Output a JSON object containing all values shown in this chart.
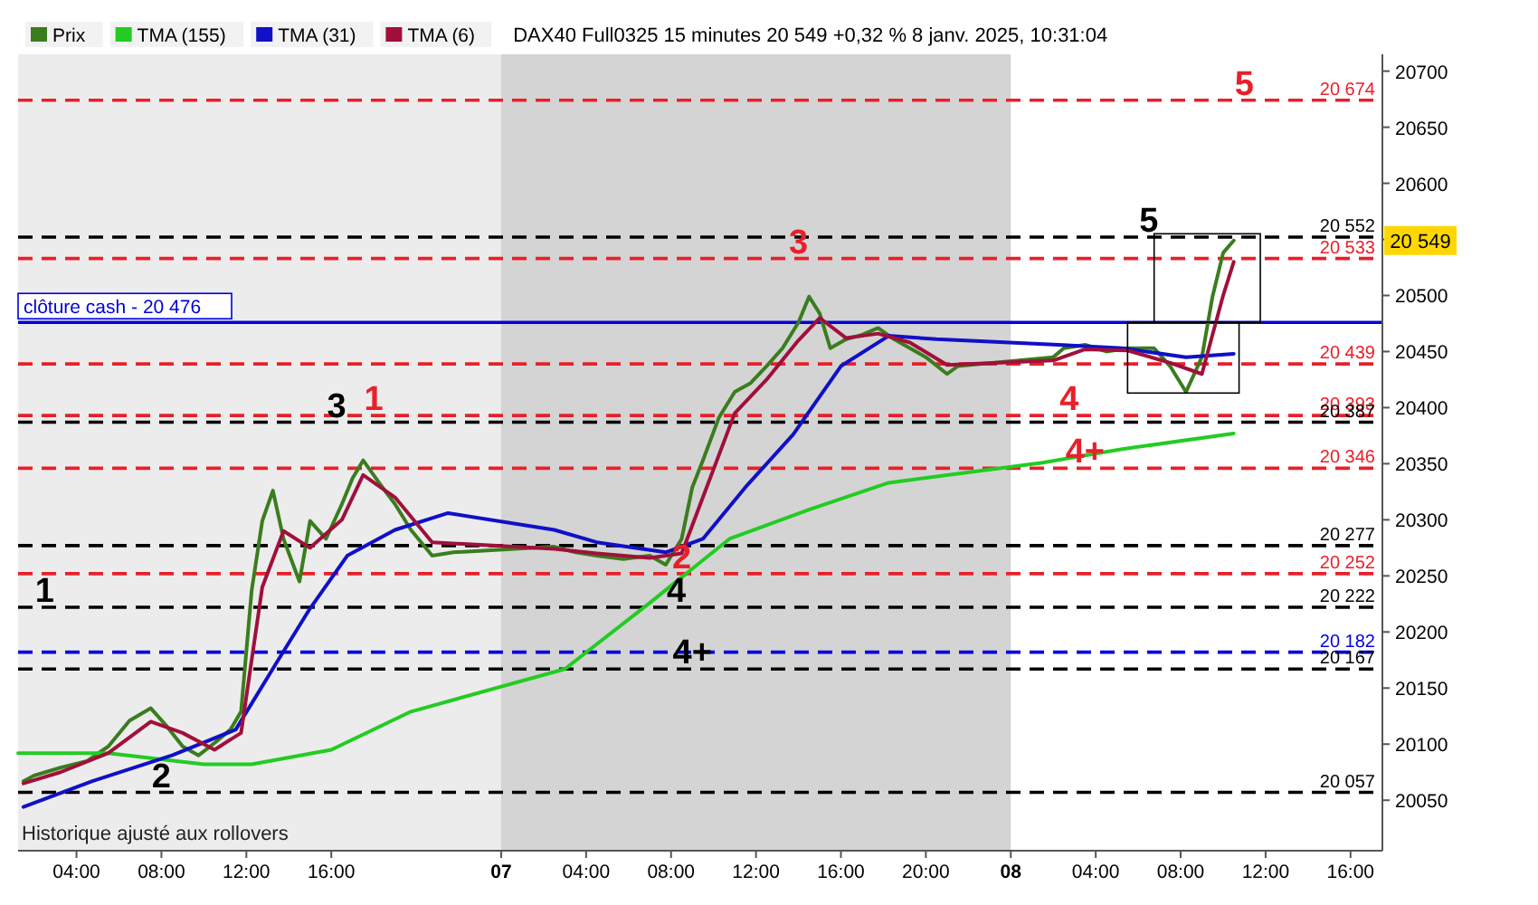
{
  "chart_data": {
    "type": "line",
    "title": "DAX40 Full0325 15 minutes 20 549 +0,32 % 8 janv. 2025, 10:31:04",
    "xlim": [
      "2025-01-06T01:15",
      "2025-01-08T17:30"
    ],
    "ylim": [
      20005,
      20715
    ],
    "xticks": [
      {
        "value": "2025-01-06T04:00",
        "label": "04:00"
      },
      {
        "value": "2025-01-06T08:00",
        "label": "08:00"
      },
      {
        "value": "2025-01-06T12:00",
        "label": "12:00"
      },
      {
        "value": "2025-01-06T16:00",
        "label": "16:00"
      },
      {
        "value": "2025-01-07",
        "label": "07"
      },
      {
        "value": "2025-01-07T04:00",
        "label": "04:00"
      },
      {
        "value": "2025-01-07T08:00",
        "label": "08:00"
      },
      {
        "value": "2025-01-07T12:00",
        "label": "12:00"
      },
      {
        "value": "2025-01-07T16:00",
        "label": "16:00"
      },
      {
        "value": "2025-01-07T20:00",
        "label": "20:00"
      },
      {
        "value": "2025-01-08",
        "label": "08"
      },
      {
        "value": "2025-01-08T04:00",
        "label": "04:00"
      },
      {
        "value": "2025-01-08T08:00",
        "label": "08:00"
      },
      {
        "value": "2025-01-08T12:00",
        "label": "12:00"
      },
      {
        "value": "2025-01-08T16:00",
        "label": "16:00"
      }
    ],
    "yticks": [
      20050,
      20100,
      20150,
      20200,
      20250,
      20300,
      20350,
      20400,
      20450,
      20500,
      {
        "value": 20550,
        "label": null
      },
      20600,
      20650,
      20700
    ],
    "legend": "top left",
    "series": [
      {
        "name": "Prix",
        "color": "#3a7d1e",
        "x": [
          "2025-01-06T01:30",
          "2025-01-06T02:00",
          "2025-01-06T03:15",
          "2025-01-06T04:30",
          "2025-01-06T05:30",
          "2025-01-06T06:30",
          "2025-01-06T07:30",
          "2025-01-06T08:15",
          "2025-01-06T09:00",
          "2025-01-06T09:45",
          "2025-01-06T10:30",
          "2025-01-06T11:15",
          "2025-01-06T11:45",
          "2025-01-06T12:15",
          "2025-01-06T12:45",
          "2025-01-06T13:15",
          "2025-01-06T13:45",
          "2025-01-06T14:30",
          "2025-01-06T15:00",
          "2025-01-06T15:45",
          "2025-01-06T16:30",
          "2025-01-06T17:00",
          "2025-01-06T17:30",
          "2025-01-06T18:15",
          "2025-01-06T19:00",
          "2025-01-06T19:45",
          "2025-01-06T20:45",
          "2025-01-06T21:45",
          "2025-01-07T02:30",
          "2025-01-07T03:30",
          "2025-01-07T04:30",
          "2025-01-07T05:45",
          "2025-01-07T07:00",
          "2025-01-07T07:45",
          "2025-01-07T08:30",
          "2025-01-07T09:00",
          "2025-01-07T09:30",
          "2025-01-07T10:15",
          "2025-01-07T11:00",
          "2025-01-07T11:45",
          "2025-01-07T12:30",
          "2025-01-07T13:15",
          "2025-01-07T14:00",
          "2025-01-07T14:30",
          "2025-01-07T15:00",
          "2025-01-07T15:30",
          "2025-01-07T16:15",
          "2025-01-07T17:00",
          "2025-01-07T17:45",
          "2025-01-07T18:30",
          "2025-01-07T19:15",
          "2025-01-07T20:00",
          "2025-01-07T21:00",
          "2025-01-07T21:30",
          "2025-01-08T02:00",
          "2025-01-08T02:30",
          "2025-01-08T03:30",
          "2025-01-08T04:30",
          "2025-01-08T05:30",
          "2025-01-08T06:45",
          "2025-01-08T07:30",
          "2025-01-08T08:15",
          "2025-01-08T09:00",
          "2025-01-08T09:30",
          "2025-01-08T10:00",
          "2025-01-08T10:30"
        ],
        "values": [
          20067,
          20072,
          20079,
          20085,
          20098,
          20121,
          20132,
          20116,
          20098,
          20090,
          20101,
          20113,
          20129,
          20237,
          20299,
          20326,
          20283,
          20245,
          20299,
          20283,
          20314,
          20337,
          20353,
          20333,
          20314,
          20291,
          20268,
          20271,
          20276,
          20271,
          20268,
          20265,
          20268,
          20260,
          20283,
          20329,
          20353,
          20391,
          20414,
          20422,
          20437,
          20453,
          20476,
          20499,
          20484,
          20453,
          20461,
          20465,
          20471,
          20461,
          20453,
          20445,
          20430,
          20437,
          20445,
          20453,
          20456,
          20450,
          20453,
          20453,
          20437,
          20414,
          20445,
          20499,
          20538,
          20549
        ]
      },
      {
        "name": "TMA (155)",
        "color": "#22cc22",
        "x": [
          "2025-01-06T01:15",
          "2025-01-06T05:30",
          "2025-01-06T10:00",
          "2025-01-06T12:15",
          "2025-01-06T16:00",
          "2025-01-06T19:45",
          "2025-01-07T03:00",
          "2025-01-07T07:00",
          "2025-01-07T10:45",
          "2025-01-07T14:30",
          "2025-01-07T18:15",
          "2025-01-08T01:30",
          "2025-01-08T05:15",
          "2025-01-08T10:30"
        ],
        "values": [
          20092,
          20092,
          20082,
          20082,
          20095,
          20129,
          20167,
          20226,
          20283,
          20309,
          20333,
          20351,
          20363,
          20377
        ]
      },
      {
        "name": "TMA (31)",
        "color": "#1010c8",
        "x": [
          "2025-01-06T01:30",
          "2025-01-06T04:45",
          "2025-01-06T08:30",
          "2025-01-06T11:30",
          "2025-01-06T13:30",
          "2025-01-06T15:00",
          "2025-01-06T16:45",
          "2025-01-06T19:00",
          "2025-01-06T21:30",
          "2025-01-07T02:30",
          "2025-01-07T04:30",
          "2025-01-07T07:45",
          "2025-01-07T09:30",
          "2025-01-07T11:30",
          "2025-01-07T13:45",
          "2025-01-07T16:00",
          "2025-01-07T18:15",
          "2025-01-07T20:30",
          "2025-01-08T02:15",
          "2025-01-08T05:15",
          "2025-01-08T08:15",
          "2025-01-08T10:30"
        ],
        "values": [
          20044,
          20067,
          20090,
          20113,
          20175,
          20221,
          20268,
          20291,
          20306,
          20291,
          20280,
          20271,
          20283,
          20329,
          20376,
          20437,
          20464,
          20461,
          20456,
          20453,
          20445,
          20448
        ]
      },
      {
        "name": "TMA (6)",
        "color": "#a0103a",
        "x": [
          "2025-01-06T01:30",
          "2025-01-06T03:15",
          "2025-01-06T05:30",
          "2025-01-06T07:30",
          "2025-01-06T09:00",
          "2025-01-06T10:30",
          "2025-01-06T11:45",
          "2025-01-06T12:45",
          "2025-01-06T13:45",
          "2025-01-06T15:00",
          "2025-01-06T16:30",
          "2025-01-06T17:30",
          "2025-01-06T19:00",
          "2025-01-06T20:45",
          "2025-01-07T02:30",
          "2025-01-07T04:30",
          "2025-01-07T07:00",
          "2025-01-07T08:30",
          "2025-01-07T09:30",
          "2025-01-07T11:00",
          "2025-01-07T12:30",
          "2025-01-07T14:00",
          "2025-01-07T15:00",
          "2025-01-07T16:15",
          "2025-01-07T17:45",
          "2025-01-07T19:15",
          "2025-01-07T21:00",
          "2025-01-08T02:00",
          "2025-01-08T03:30",
          "2025-01-08T05:30",
          "2025-01-08T07:30",
          "2025-01-08T09:00",
          "2025-01-08T10:00",
          "2025-01-08T10:30"
        ],
        "values": [
          20065,
          20075,
          20092,
          20120,
          20110,
          20095,
          20110,
          20240,
          20290,
          20275,
          20300,
          20340,
          20320,
          20280,
          20274,
          20270,
          20266,
          20270,
          20320,
          20395,
          20425,
          20460,
          20480,
          20462,
          20466,
          20458,
          20438,
          20442,
          20452,
          20451,
          20440,
          20430,
          20500,
          20530
        ]
      }
    ],
    "ref_lines": [
      {
        "axis": "y",
        "value": 20674,
        "label": "20 674",
        "color": "#e8202a",
        "line_style": "dashed"
      },
      {
        "axis": "y",
        "value": 20552,
        "label": "20 552",
        "color": "#000000",
        "line_style": "dashed"
      },
      {
        "axis": "y",
        "value": 20533,
        "label": "20 533",
        "color": "#e8202a",
        "line_style": "dashed"
      },
      {
        "axis": "y",
        "value": 20476,
        "label": "clôture cash -  20 476",
        "color": "#0000dd",
        "line_style": "solid"
      },
      {
        "axis": "y",
        "value": 20439,
        "label": "20 439",
        "color": "#e8202a",
        "line_style": "dashed"
      },
      {
        "axis": "y",
        "value": 20393,
        "label": "20 393",
        "color": "#e8202a",
        "line_style": "dashed"
      },
      {
        "axis": "y",
        "value": 20387,
        "label": "20 387",
        "color": "#000000",
        "line_style": "dashed"
      },
      {
        "axis": "y",
        "value": 20346,
        "label": "20 346",
        "color": "#e8202a",
        "line_style": "dashed"
      },
      {
        "axis": "y",
        "value": 20277,
        "label": "20 277",
        "color": "#000000",
        "line_style": "dashed"
      },
      {
        "axis": "y",
        "value": 20252,
        "label": "20 252",
        "color": "#e8202a",
        "line_style": "dashed"
      },
      {
        "axis": "y",
        "value": 20222,
        "label": "20 222",
        "color": "#000000",
        "line_style": "dashed"
      },
      {
        "axis": "y",
        "value": 20182,
        "label": "20 182",
        "color": "#0000dd",
        "line_style": "dashed"
      },
      {
        "axis": "y",
        "value": 20167,
        "label": "20 167",
        "color": "#000000",
        "line_style": "dashed"
      },
      {
        "axis": "y",
        "value": 20057,
        "label": "20 057",
        "color": "#000000",
        "line_style": "dashed"
      }
    ],
    "bands": [
      {
        "axis": "x",
        "from": "2025-01-06T01:15",
        "to": "2025-01-07",
        "color": "#ececec"
      },
      {
        "axis": "x",
        "from": "2025-01-07",
        "to": "2025-01-08",
        "color": "#d4d4d4"
      }
    ],
    "annotations": [
      {
        "text": "1",
        "x": "2025-01-06T02:30",
        "y": 20222
      },
      {
        "text": "2",
        "x": "2025-01-06T08:00",
        "y": 20057
      },
      {
        "text": "3",
        "x": "2025-01-06T16:15",
        "y": 20387
      },
      {
        "text": "1",
        "x": "2025-01-06T18:00",
        "y": 20393
      },
      {
        "text": "2",
        "x": "2025-01-07T08:30",
        "y": 20252
      },
      {
        "text": "3",
        "x": "2025-01-07T14:00",
        "y": 20533
      },
      {
        "text": "4",
        "x": "2025-01-07T08:15",
        "y": 20222
      },
      {
        "text": "4+",
        "x": "2025-01-07T09:00",
        "y": 20167
      },
      {
        "text": "4",
        "x": "2025-01-08T02:45",
        "y": 20393
      },
      {
        "text": "4+",
        "x": "2025-01-08T03:30",
        "y": 20346
      },
      {
        "text": "5",
        "x": "2025-01-08T06:30",
        "y": 20552
      },
      {
        "text": "5",
        "x": "2025-01-08T11:00",
        "y": 20674
      },
      "20 549",
      "Historique ajusté aux rollovers"
    ]
  }
}
